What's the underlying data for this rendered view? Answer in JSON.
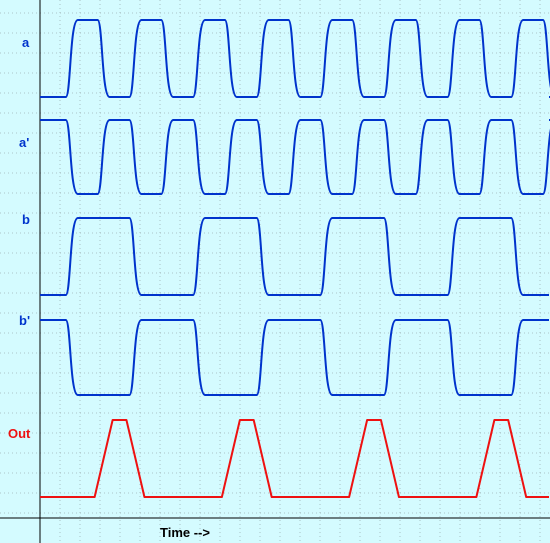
{
  "chart_data": {
    "type": "line",
    "xlabel": "Time -->",
    "colors": {
      "background": "#d4fbff",
      "grid": "#9fb3b7",
      "axis": "#000000",
      "input_trace": "#0033cc",
      "output_trace": "#ee1111"
    },
    "grid": true,
    "x": [
      0,
      1,
      2,
      3,
      4,
      5,
      6,
      7,
      8,
      9,
      10,
      11,
      12,
      13,
      14,
      15,
      16
    ],
    "series": [
      {
        "name": "a",
        "color": "#0033cc",
        "values": [
          0,
          1,
          0,
          1,
          0,
          1,
          0,
          1,
          0,
          1,
          0,
          1,
          0,
          1,
          0,
          1,
          0
        ]
      },
      {
        "name": "a'",
        "color": "#0033cc",
        "values": [
          1,
          0,
          1,
          0,
          1,
          0,
          1,
          0,
          1,
          0,
          1,
          0,
          1,
          0,
          1,
          0,
          1
        ]
      },
      {
        "name": "b",
        "color": "#0033cc",
        "values": [
          0,
          1,
          1,
          0,
          0,
          1,
          1,
          0,
          0,
          1,
          1,
          0,
          0,
          1,
          1,
          0,
          0
        ]
      },
      {
        "name": "b'",
        "color": "#0033cc",
        "values": [
          1,
          0,
          0,
          1,
          1,
          0,
          0,
          1,
          1,
          0,
          0,
          1,
          1,
          0,
          0,
          1,
          1
        ]
      },
      {
        "name": "Out",
        "color": "#ee1111",
        "values": [
          0,
          0,
          1,
          0,
          0,
          0,
          1,
          0,
          0,
          0,
          1,
          0,
          0,
          0,
          1,
          0,
          0
        ]
      }
    ]
  }
}
